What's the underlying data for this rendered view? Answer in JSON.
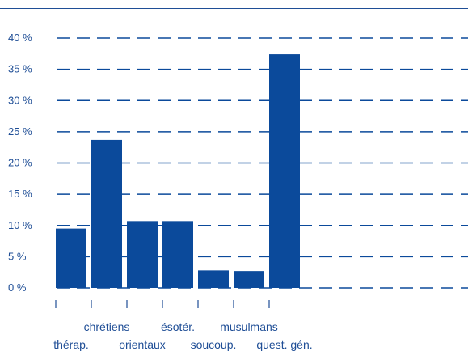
{
  "chart_data": {
    "type": "bar",
    "categories": [
      "thérap.",
      "chrétiens",
      "orientaux",
      "ésotér.",
      "soucoup.",
      "musulmans",
      "quest. gén."
    ],
    "values": [
      9.5,
      23.7,
      10.7,
      10.7,
      2.8,
      2.7,
      37.4
    ],
    "ylim": [
      0,
      40
    ],
    "yticks": [
      0,
      5,
      10,
      15,
      20,
      25,
      30,
      35,
      40
    ],
    "ytick_labels": [
      "0 %",
      "5 %",
      "10 %",
      "15 %",
      "20 %",
      "25 %",
      "30 %",
      "35 %",
      "40 %"
    ],
    "grid": true,
    "color": "#0b4a9b"
  }
}
